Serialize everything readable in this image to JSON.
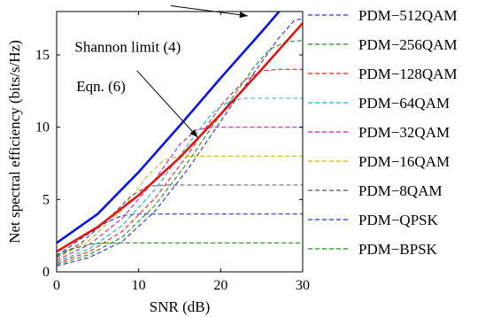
{
  "chart_data": {
    "type": "line",
    "xlabel": "SNR (dB)",
    "ylabel": "Net spectral efficiency (bits/s/Hz)",
    "xlim": [
      0,
      30
    ],
    "ylim": [
      0,
      18
    ],
    "xticks": [
      "0",
      "10",
      "20",
      "30"
    ],
    "yticks": [
      "0",
      "5",
      "10",
      "15"
    ],
    "grid": false,
    "legend_position": "right",
    "annotations": [
      {
        "text": "Shannon limit (4)",
        "x": 13.9,
        "y": 18.4,
        "target_x": 23.3,
        "target_y": 17.7,
        "label_x": 2.2,
        "label_y": 15.2
      },
      {
        "text": "Eqn. (6)",
        "x": 9.8,
        "y": 13.9,
        "target_x": 17.2,
        "target_y": 9.3,
        "label_x": 2.4,
        "label_y": 12.5
      }
    ],
    "series": [
      {
        "name": "Shannon limit (4)",
        "style": "solid",
        "color": "#0a14e6",
        "x": [
          0,
          5,
          10,
          15,
          20,
          25,
          30
        ],
        "y": [
          2.0,
          4.0,
          6.9,
          10.1,
          13.4,
          16.6,
          19.9
        ]
      },
      {
        "name": "Eqn. (6)",
        "style": "solid",
        "color": "#e61414",
        "x": [
          0,
          5,
          10,
          15,
          20,
          25,
          30
        ],
        "y": [
          1.4,
          3.1,
          5.3,
          7.9,
          10.9,
          14.0,
          17.2
        ]
      },
      {
        "name": "PDM−512QAM",
        "style": "dashed",
        "color": "#2233dd",
        "x": [
          0,
          4,
          8,
          12,
          16,
          20,
          24,
          27,
          29,
          30
        ],
        "y": [
          0.4,
          1.0,
          2.1,
          4.2,
          7.1,
          10.4,
          13.7,
          16.1,
          17.4,
          17.5
        ]
      },
      {
        "name": "PDM−256QAM",
        "style": "dashed",
        "color": "#1e8c1e",
        "x": [
          0,
          4,
          8,
          12,
          16,
          20,
          24,
          26,
          28,
          30
        ],
        "y": [
          0.5,
          1.2,
          2.4,
          4.6,
          7.6,
          10.9,
          14.1,
          15.4,
          15.9,
          16.0
        ]
      },
      {
        "name": "PDM−128QAM",
        "style": "dashed",
        "color": "#e62626",
        "x": [
          0,
          4,
          8,
          12,
          16,
          20,
          23,
          25,
          27,
          30
        ],
        "y": [
          0.6,
          1.4,
          2.8,
          5.1,
          8.1,
          11.5,
          13.3,
          13.9,
          14.0,
          14.0
        ]
      },
      {
        "name": "PDM−64QAM",
        "style": "dashed",
        "color": "#1ab4c8",
        "x": [
          0,
          4,
          8,
          12,
          16,
          19,
          21,
          23,
          30
        ],
        "y": [
          0.7,
          1.6,
          3.2,
          5.7,
          8.8,
          11.0,
          11.8,
          12.0,
          12.0
        ]
      },
      {
        "name": "PDM−32QAM",
        "style": "dashed",
        "color": "#c81ec8",
        "x": [
          0,
          4,
          8,
          12,
          15,
          17,
          19,
          30
        ],
        "y": [
          0.8,
          1.9,
          3.7,
          6.4,
          8.8,
          9.8,
          10.0,
          10.0
        ]
      },
      {
        "name": "PDM−16QAM",
        "style": "dashed",
        "color": "#c8b41e",
        "x": [
          0,
          4,
          8,
          11,
          13,
          15,
          30
        ],
        "y": [
          0.9,
          2.2,
          4.3,
          6.6,
          7.7,
          8.0,
          8.0
        ]
      },
      {
        "name": "PDM−8QAM",
        "style": "dashed",
        "color": "#555555",
        "x": [
          0,
          3,
          6,
          9,
          11,
          13,
          30
        ],
        "y": [
          1.0,
          2.0,
          3.5,
          5.2,
          5.9,
          6.0,
          6.0
        ]
      },
      {
        "name": "PDM−QPSK",
        "style": "dashed",
        "color": "#2233dd",
        "x": [
          0,
          3,
          6,
          8,
          10,
          30
        ],
        "y": [
          1.1,
          2.3,
          3.4,
          3.9,
          4.0,
          4.0
        ]
      },
      {
        "name": "PDM−BPSK",
        "style": "dashed",
        "color": "#1e8c1e",
        "x": [
          0,
          2,
          4,
          6,
          7,
          30
        ],
        "y": [
          1.2,
          1.6,
          1.9,
          2.0,
          2.0,
          2.0
        ]
      }
    ]
  }
}
